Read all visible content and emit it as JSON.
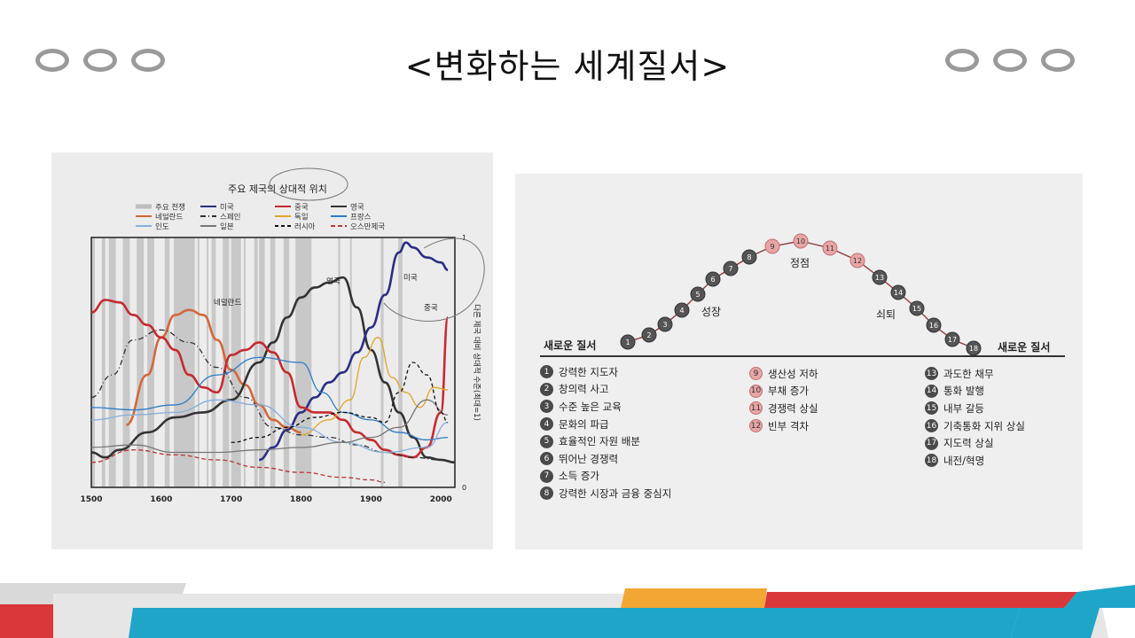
{
  "slide": {
    "title": "<변화하는 세계질서>"
  },
  "colors": {
    "accent_red": "#d9373a",
    "accent_blue": "#1ea5c8",
    "accent_orange": "#f2a634",
    "oval_gray": "#9a9a9a"
  },
  "chart_data": [
    {
      "type": "line",
      "title": "주요 제국의 상대적 위치",
      "ylabel": "다른 제국 대비 상대적 수준(최대=1)",
      "xlim": [
        1500,
        2020
      ],
      "ylim": [
        0,
        1
      ],
      "x_ticks": [
        "1500",
        "1600",
        "1700",
        "1800",
        "1900",
        "2000"
      ],
      "y_ticks": [
        "0",
        "1"
      ],
      "legend": [
        "주요 전쟁",
        "네덜란드",
        "인도",
        "미국",
        "스페인",
        "일본",
        "중국",
        "독일",
        "러시아",
        "영국",
        "프랑스",
        "오스만제국"
      ],
      "annotations": [
        "네덜란드",
        "영국",
        "미국",
        "중국"
      ],
      "series": [
        {
          "name": "네덜란드",
          "color": "#d2683a",
          "x": [
            1550,
            1580,
            1600,
            1620,
            1640,
            1660,
            1680,
            1700,
            1720,
            1740,
            1760,
            1780,
            1800
          ],
          "y": [
            0.25,
            0.45,
            0.6,
            0.69,
            0.71,
            0.69,
            0.59,
            0.47,
            0.41,
            0.33,
            0.27,
            0.24,
            0.22
          ]
        },
        {
          "name": "영국",
          "color": "#333333",
          "x": [
            1500,
            1520,
            1540,
            1580,
            1620,
            1660,
            1700,
            1740,
            1760,
            1780,
            1800,
            1820,
            1840,
            1860,
            1880,
            1900,
            1920,
            1940,
            1960,
            1980,
            2000,
            2020
          ],
          "y": [
            0.14,
            0.12,
            0.15,
            0.22,
            0.28,
            0.3,
            0.35,
            0.5,
            0.58,
            0.68,
            0.76,
            0.8,
            0.82,
            0.84,
            0.72,
            0.55,
            0.42,
            0.3,
            0.2,
            0.12,
            0.11,
            0.1
          ]
        },
        {
          "name": "미국",
          "color": "#2b2e85",
          "x": [
            1740,
            1760,
            1780,
            1800,
            1820,
            1840,
            1860,
            1880,
            1900,
            1920,
            1940,
            1950,
            1960,
            1980,
            2000,
            2010
          ],
          "y": [
            0.11,
            0.16,
            0.23,
            0.3,
            0.36,
            0.42,
            0.46,
            0.54,
            0.64,
            0.77,
            0.94,
            0.98,
            0.96,
            0.92,
            0.9,
            0.87
          ]
        },
        {
          "name": "중국",
          "color": "#c62a2f",
          "x": [
            1500,
            1520,
            1540,
            1560,
            1580,
            1600,
            1620,
            1640,
            1660,
            1680,
            1700,
            1720,
            1740,
            1760,
            1780,
            1800,
            1820,
            1840,
            1860,
            1880,
            1900,
            1920,
            1940,
            1960,
            1980,
            2000,
            2010
          ],
          "y": [
            0.7,
            0.75,
            0.74,
            0.69,
            0.65,
            0.6,
            0.55,
            0.45,
            0.4,
            0.38,
            0.53,
            0.55,
            0.58,
            0.54,
            0.46,
            0.32,
            0.3,
            0.3,
            0.27,
            0.22,
            0.19,
            0.15,
            0.13,
            0.12,
            0.16,
            0.3,
            0.68
          ]
        },
        {
          "name": "스페인",
          "color": "#2f2f2f",
          "dash": "6 3 1 3",
          "x": [
            1500,
            1530,
            1560,
            1600,
            1640,
            1680,
            1720,
            1760,
            1800,
            1840,
            1880,
            1920,
            1960,
            2000
          ],
          "y": [
            0.36,
            0.45,
            0.59,
            0.63,
            0.58,
            0.48,
            0.36,
            0.24,
            0.21,
            0.2,
            0.17,
            0.14,
            0.12,
            0.11
          ]
        },
        {
          "name": "프랑스",
          "color": "#2f7bc7",
          "x": [
            1500,
            1560,
            1620,
            1680,
            1740,
            1800,
            1830,
            1860,
            1900,
            1940,
            1980,
            2010
          ],
          "y": [
            0.32,
            0.31,
            0.33,
            0.45,
            0.52,
            0.5,
            0.38,
            0.3,
            0.27,
            0.22,
            0.19,
            0.2
          ]
        },
        {
          "name": "독일",
          "color": "#e0a528",
          "x": [
            1800,
            1840,
            1870,
            1890,
            1910,
            1930,
            1950,
            1970,
            1990,
            2010
          ],
          "y": [
            0.21,
            0.27,
            0.35,
            0.52,
            0.6,
            0.44,
            0.38,
            0.32,
            0.4,
            0.39
          ]
        },
        {
          "name": "인도",
          "color": "#86aedb",
          "x": [
            1500,
            1560,
            1620,
            1680,
            1740,
            1800,
            1860,
            1920,
            1980,
            2010
          ],
          "y": [
            0.27,
            0.29,
            0.3,
            0.35,
            0.33,
            0.24,
            0.18,
            0.14,
            0.16,
            0.26
          ]
        },
        {
          "name": "일본",
          "color": "#777777",
          "x": [
            1500,
            1560,
            1620,
            1680,
            1740,
            1800,
            1860,
            1900,
            1940,
            1980,
            2010
          ],
          "y": [
            0.16,
            0.17,
            0.14,
            0.14,
            0.15,
            0.16,
            0.18,
            0.2,
            0.24,
            0.35,
            0.29
          ]
        },
        {
          "name": "러시아",
          "color": "#111111",
          "dash": "4 3",
          "x": [
            1700,
            1740,
            1780,
            1820,
            1860,
            1900,
            1920,
            1940,
            1960,
            1980,
            2000,
            2010
          ],
          "y": [
            0.18,
            0.2,
            0.24,
            0.28,
            0.3,
            0.28,
            0.26,
            0.38,
            0.5,
            0.45,
            0.3,
            0.26
          ]
        },
        {
          "name": "오스만제국",
          "color": "#b9363a",
          "dash": "5 3",
          "x": [
            1500,
            1560,
            1620,
            1680,
            1740,
            1800,
            1860,
            1900,
            1920
          ],
          "y": [
            0.1,
            0.15,
            0.13,
            0.11,
            0.08,
            0.06,
            0.04,
            0.03,
            0.02
          ]
        }
      ],
      "war_bands": [
        [
          1500,
          1505
        ],
        [
          1515,
          1520
        ],
        [
          1525,
          1535
        ],
        [
          1545,
          1555
        ],
        [
          1565,
          1575
        ],
        [
          1580,
          1590
        ],
        [
          1605,
          1612
        ],
        [
          1618,
          1648
        ],
        [
          1652,
          1654
        ],
        [
          1665,
          1667
        ],
        [
          1672,
          1678
        ],
        [
          1688,
          1697
        ],
        [
          1700,
          1714
        ],
        [
          1718,
          1720
        ],
        [
          1733,
          1738
        ],
        [
          1740,
          1748
        ],
        [
          1756,
          1763
        ],
        [
          1775,
          1783
        ],
        [
          1792,
          1815
        ],
        [
          1853,
          1856
        ],
        [
          1870,
          1871
        ],
        [
          1914,
          1918
        ],
        [
          1939,
          1945
        ]
      ]
    },
    {
      "type": "line",
      "title": "",
      "phases": {
        "rise": "성장",
        "peak": "정점",
        "decline": "쇠퇴",
        "start": "새로운 질서",
        "end": "새로운 질서"
      },
      "stages": [
        {
          "n": "1",
          "label": "강력한 지도자"
        },
        {
          "n": "2",
          "label": "창의력 사고"
        },
        {
          "n": "3",
          "label": "수준 높은 교육"
        },
        {
          "n": "4",
          "label": "문화의 파급"
        },
        {
          "n": "5",
          "label": "효율적인 자원 배분"
        },
        {
          "n": "6",
          "label": "뛰어난 경쟁력"
        },
        {
          "n": "7",
          "label": "소득 증가"
        },
        {
          "n": "8",
          "label": "강력한 시장과 금융 중심지"
        },
        {
          "n": "9",
          "label": "생산성 저하"
        },
        {
          "n": "10",
          "label": "부채 증가"
        },
        {
          "n": "11",
          "label": "경쟁력 상실"
        },
        {
          "n": "12",
          "label": "빈부 격차"
        },
        {
          "n": "13",
          "label": "과도한 채무"
        },
        {
          "n": "14",
          "label": "통화 발행"
        },
        {
          "n": "15",
          "label": "내부 갈등"
        },
        {
          "n": "16",
          "label": "기축통화 지위 상실"
        },
        {
          "n": "17",
          "label": "지도력 상실"
        },
        {
          "n": "18",
          "label": "내전/혁명"
        }
      ]
    }
  ]
}
